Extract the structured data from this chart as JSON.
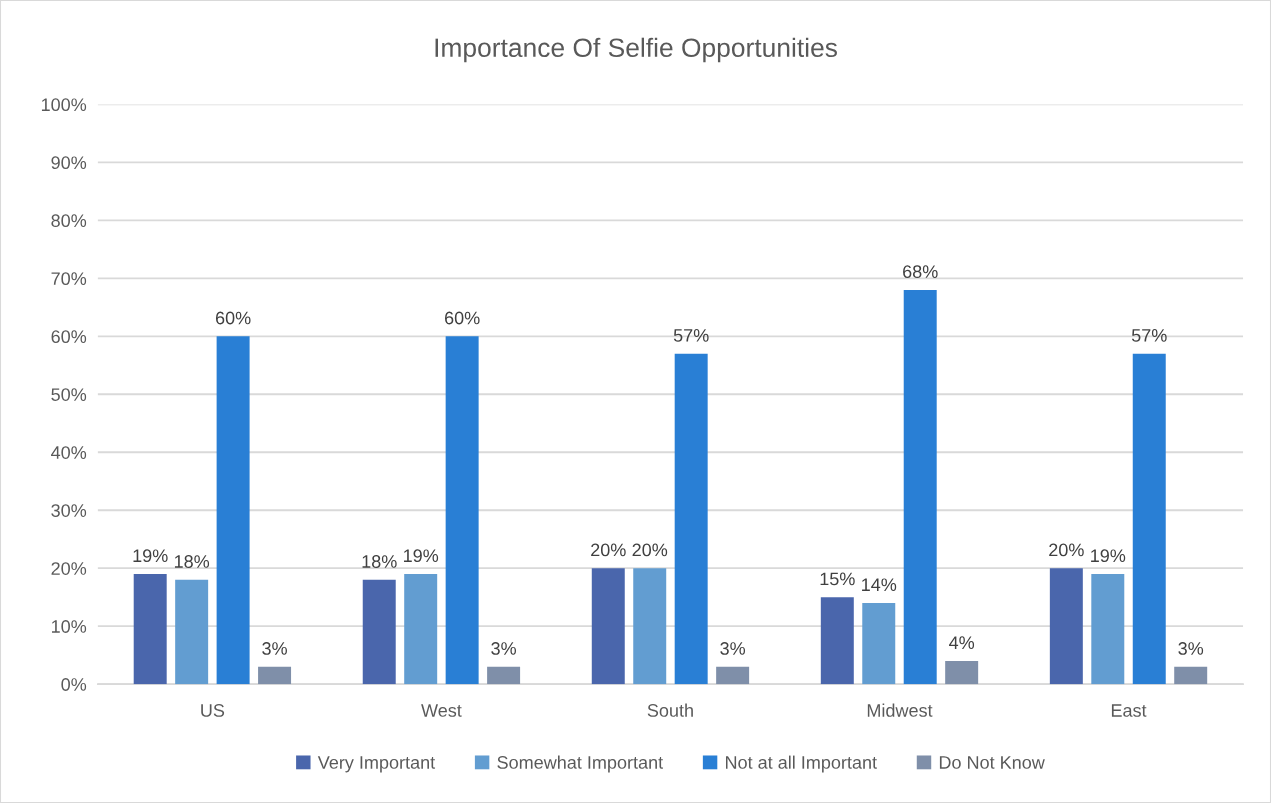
{
  "chart_data": {
    "type": "bar",
    "title": "Importance Of Selfie Opportunities",
    "categories": [
      "US",
      "West",
      "South",
      "Midwest",
      "East"
    ],
    "series": [
      {
        "name": "Very Important",
        "color": "#4a66ac",
        "values": [
          19,
          18,
          20,
          15,
          20
        ],
        "value_labels": [
          "19%",
          "18%",
          "20%",
          "15%",
          "20%"
        ]
      },
      {
        "name": "Somewhat Important",
        "color": "#629dd1",
        "values": [
          18,
          19,
          20,
          14,
          19
        ],
        "value_labels": [
          "18%",
          "19%",
          "20%",
          "14%",
          "19%"
        ]
      },
      {
        "name": "Not at all Important",
        "color": "#297fd5",
        "values": [
          60,
          60,
          57,
          68,
          57
        ],
        "value_labels": [
          "60%",
          "60%",
          "57%",
          "68%",
          "57%"
        ]
      },
      {
        "name": "Do Not Know",
        "color": "#7f8fa9",
        "values": [
          3,
          3,
          3,
          4,
          3
        ],
        "value_labels": [
          "3%",
          "3%",
          "3%",
          "4%",
          "3%"
        ]
      }
    ],
    "ylim": [
      0,
      100
    ],
    "yticks": [
      {
        "value": 0,
        "label": "0%"
      },
      {
        "value": 10,
        "label": "10%"
      },
      {
        "value": 20,
        "label": "20%"
      },
      {
        "value": 30,
        "label": "30%"
      },
      {
        "value": 40,
        "label": "40%"
      },
      {
        "value": 50,
        "label": "50%"
      },
      {
        "value": 60,
        "label": "60%"
      },
      {
        "value": 70,
        "label": "70%"
      },
      {
        "value": 80,
        "label": "80%"
      },
      {
        "value": 90,
        "label": "90%"
      },
      {
        "value": 100,
        "label": "100%"
      }
    ],
    "grid": "y",
    "legend": "bottom"
  }
}
